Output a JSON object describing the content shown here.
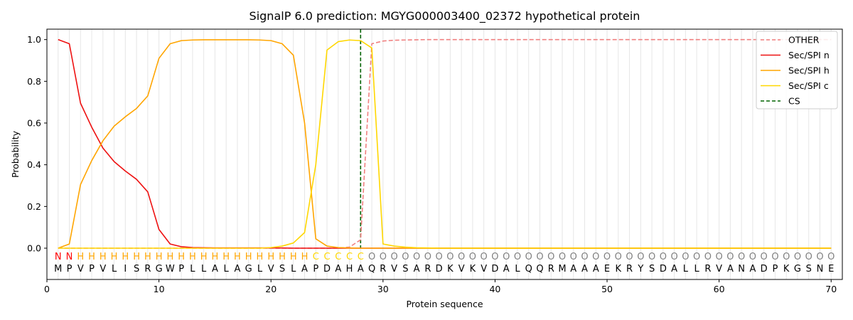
{
  "chart_data": {
    "type": "line",
    "title": "SignalP 6.0 prediction: MGYG000003400_02372 hypothetical protein",
    "xlabel": "Protein sequence",
    "ylabel": "Probability",
    "xlim": [
      0,
      71
    ],
    "ylim": [
      -0.15,
      1.05
    ],
    "xticks": [
      0,
      10,
      20,
      30,
      40,
      50,
      60,
      70
    ],
    "yticks": [
      0.0,
      0.2,
      0.4,
      0.6,
      0.8,
      1.0
    ],
    "ytick_labels": [
      "0.0",
      "0.2",
      "0.4",
      "0.6",
      "0.8",
      "1.0"
    ],
    "grid": "vertical lines at each residue",
    "legend_position": "top-right",
    "sequence": [
      "M",
      "P",
      "V",
      "P",
      "V",
      "L",
      "I",
      "S",
      "R",
      "G",
      "W",
      "P",
      "L",
      "L",
      "A",
      "L",
      "A",
      "G",
      "L",
      "V",
      "S",
      "L",
      "A",
      "P",
      "D",
      "A",
      "H",
      "A",
      "Q",
      "R",
      "V",
      "S",
      "A",
      "R",
      "D",
      "K",
      "V",
      "K",
      "V",
      "D",
      "A",
      "L",
      "Q",
      "Q",
      "R",
      "M",
      "A",
      "A",
      "A",
      "E",
      "K",
      "R",
      "Y",
      "S",
      "D",
      "A",
      "L",
      "L",
      "R",
      "V",
      "A",
      "N",
      "A",
      "D",
      "P",
      "K",
      "G",
      "S",
      "N",
      "E"
    ],
    "prediction": [
      "N",
      "N",
      "H",
      "H",
      "H",
      "H",
      "H",
      "H",
      "H",
      "H",
      "H",
      "H",
      "H",
      "H",
      "H",
      "H",
      "H",
      "H",
      "H",
      "H",
      "H",
      "H",
      "H",
      "C",
      "C",
      "C",
      "C",
      "C",
      "O",
      "O",
      "O",
      "O",
      "O",
      "O",
      "O",
      "O",
      "O",
      "O",
      "O",
      "O",
      "O",
      "O",
      "O",
      "O",
      "O",
      "O",
      "O",
      "O",
      "O",
      "O",
      "O",
      "O",
      "O",
      "O",
      "O",
      "O",
      "O",
      "O",
      "O",
      "O",
      "O",
      "O",
      "O",
      "O",
      "O",
      "O",
      "O",
      "O",
      "O",
      "O"
    ],
    "prediction_colors": {
      "N": "#ff0000",
      "H": "#ffa500",
      "C": "#ffd700",
      "O": "#808080"
    },
    "cleavage_site": 28,
    "series": [
      {
        "name": "OTHER",
        "color": "#f08080",
        "style": "dashed",
        "values": [
          0.0,
          0.0,
          0.0,
          0.0,
          0.0,
          0.0,
          0.0,
          0.0,
          0.0,
          0.0,
          0.0,
          0.0,
          0.0,
          0.0,
          0.0,
          0.0,
          0.0,
          0.0,
          0.0,
          0.0,
          0.0,
          0.0,
          0.0,
          0.0,
          0.0,
          0.0,
          0.005,
          0.04,
          0.98,
          0.993,
          0.997,
          0.998,
          0.999,
          1.0,
          1.0,
          1.0,
          1.0,
          1.0,
          1.0,
          1.0,
          1.0,
          1.0,
          1.0,
          1.0,
          1.0,
          1.0,
          1.0,
          1.0,
          1.0,
          1.0,
          1.0,
          1.0,
          1.0,
          1.0,
          1.0,
          1.0,
          1.0,
          1.0,
          1.0,
          1.0,
          1.0,
          1.0,
          1.0,
          1.0,
          1.0,
          1.0,
          1.0,
          1.0,
          1.0,
          1.0
        ]
      },
      {
        "name": "Sec/SPI n",
        "color": "#ee1111",
        "style": "solid",
        "values": [
          1.0,
          0.98,
          0.695,
          0.58,
          0.48,
          0.415,
          0.37,
          0.33,
          0.27,
          0.09,
          0.02,
          0.007,
          0.003,
          0.002,
          0.001,
          0.001,
          0.001,
          0.001,
          0.001,
          0.001,
          0.001,
          0.0,
          0.0,
          0.0,
          0.0,
          0.0,
          0.0,
          0.0,
          0.0,
          0.0,
          0.0,
          0.0,
          0.0,
          0.0,
          0.0,
          0.0,
          0.0,
          0.0,
          0.0,
          0.0,
          0.0,
          0.0,
          0.0,
          0.0,
          0.0,
          0.0,
          0.0,
          0.0,
          0.0,
          0.0,
          0.0,
          0.0,
          0.0,
          0.0,
          0.0,
          0.0,
          0.0,
          0.0,
          0.0,
          0.0,
          0.0,
          0.0,
          0.0,
          0.0,
          0.0,
          0.0,
          0.0,
          0.0,
          0.0,
          0.0
        ]
      },
      {
        "name": "Sec/SPI h",
        "color": "#ffa500",
        "style": "solid",
        "values": [
          0.0,
          0.02,
          0.305,
          0.42,
          0.515,
          0.585,
          0.63,
          0.67,
          0.73,
          0.91,
          0.98,
          0.995,
          0.998,
          0.999,
          0.999,
          0.999,
          0.999,
          0.999,
          0.998,
          0.995,
          0.98,
          0.925,
          0.6,
          0.045,
          0.01,
          0.003,
          0.001,
          0.0,
          0.0,
          0.0,
          0.0,
          0.0,
          0.0,
          0.0,
          0.0,
          0.0,
          0.0,
          0.0,
          0.0,
          0.0,
          0.0,
          0.0,
          0.0,
          0.0,
          0.0,
          0.0,
          0.0,
          0.0,
          0.0,
          0.0,
          0.0,
          0.0,
          0.0,
          0.0,
          0.0,
          0.0,
          0.0,
          0.0,
          0.0,
          0.0,
          0.0,
          0.0,
          0.0,
          0.0,
          0.0,
          0.0,
          0.0,
          0.0,
          0.0,
          0.0
        ]
      },
      {
        "name": "Sec/SPI c",
        "color": "#ffd700",
        "style": "solid",
        "values": [
          0.0,
          0.0,
          0.0,
          0.0,
          0.0,
          0.0,
          0.0,
          0.0,
          0.0,
          0.0,
          0.0,
          0.0,
          0.0,
          0.0,
          0.0,
          0.0,
          0.0,
          0.0,
          0.0,
          0.003,
          0.01,
          0.025,
          0.075,
          0.4,
          0.95,
          0.99,
          0.998,
          0.995,
          0.96,
          0.02,
          0.01,
          0.005,
          0.002,
          0.001,
          0.0,
          0.0,
          0.0,
          0.0,
          0.0,
          0.0,
          0.0,
          0.0,
          0.0,
          0.0,
          0.0,
          0.0,
          0.0,
          0.0,
          0.0,
          0.0,
          0.0,
          0.0,
          0.0,
          0.0,
          0.0,
          0.0,
          0.0,
          0.0,
          0.0,
          0.0,
          0.0,
          0.0,
          0.0,
          0.0,
          0.0,
          0.0,
          0.0,
          0.0,
          0.0,
          0.0
        ]
      }
    ],
    "cs_series": {
      "name": "CS",
      "color": "#006400",
      "style": "dashed"
    }
  }
}
